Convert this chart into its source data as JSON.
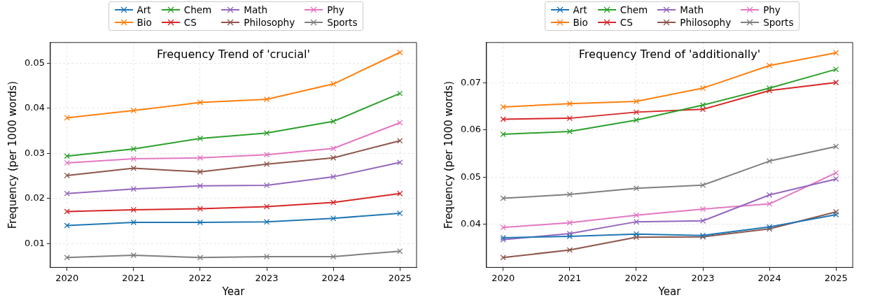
{
  "chart_data": [
    {
      "type": "line",
      "title": "Frequency Trend of 'crucial'",
      "xlabel": "Year",
      "ylabel": "Frequency (per 1000 words)",
      "x": [
        2020,
        2021,
        2022,
        2023,
        2024,
        2025
      ],
      "xlim": [
        2019.75,
        2025.25
      ],
      "xticks": [
        2020,
        2021,
        2022,
        2023,
        2024,
        2025
      ],
      "ylim": [
        0.0047,
        0.0546
      ],
      "yticks": [
        0.01,
        0.02,
        0.03,
        0.04,
        0.05
      ],
      "legend": "top",
      "grid": true,
      "marker": "cross",
      "line_style": "solid",
      "series": [
        {
          "name": "Art",
          "color": "#1f77b4",
          "values": [
            0.014,
            0.0147,
            0.0147,
            0.0148,
            0.0156,
            0.0167
          ]
        },
        {
          "name": "Bio",
          "color": "#ff7f0e",
          "values": [
            0.0379,
            0.0395,
            0.0413,
            0.042,
            0.0454,
            0.0524
          ]
        },
        {
          "name": "Chem",
          "color": "#2ca02c",
          "values": [
            0.0294,
            0.031,
            0.0333,
            0.0345,
            0.0371,
            0.0433
          ]
        },
        {
          "name": "CS",
          "color": "#d62728",
          "values": [
            0.0171,
            0.0175,
            0.0177,
            0.0182,
            0.0191,
            0.0211
          ]
        },
        {
          "name": "Math",
          "color": "#9467bd",
          "values": [
            0.0211,
            0.0221,
            0.0228,
            0.0229,
            0.0248,
            0.028
          ]
        },
        {
          "name": "Philosophy",
          "color": "#8c564b",
          "values": [
            0.0251,
            0.0267,
            0.0259,
            0.0276,
            0.029,
            0.0328
          ]
        },
        {
          "name": "Phy",
          "color": "#e377c2",
          "values": [
            0.0279,
            0.0288,
            0.029,
            0.0297,
            0.0311,
            0.0368
          ]
        },
        {
          "name": "Sports",
          "color": "#7f7f7f",
          "values": [
            0.0069,
            0.0074,
            0.0069,
            0.0071,
            0.0071,
            0.0083
          ]
        }
      ]
    },
    {
      "type": "line",
      "title": "Frequency Trend of 'additionally'",
      "xlabel": "Year",
      "ylabel": "Frequency (per 1000 words)",
      "x": [
        2020,
        2021,
        2022,
        2023,
        2024,
        2025
      ],
      "xlim": [
        2019.75,
        2025.25
      ],
      "xticks": [
        2020,
        2021,
        2022,
        2023,
        2024,
        2025
      ],
      "ylim": [
        0.0308,
        0.0786
      ],
      "yticks": [
        0.04,
        0.05,
        0.06,
        0.07
      ],
      "legend": "top",
      "grid": true,
      "marker": "cross",
      "line_style": "solid",
      "series": [
        {
          "name": "Art",
          "color": "#1f77b4",
          "values": [
            0.0371,
            0.0374,
            0.0379,
            0.0376,
            0.0394,
            0.042
          ]
        },
        {
          "name": "Bio",
          "color": "#ff7f0e",
          "values": [
            0.0649,
            0.0656,
            0.0661,
            0.0689,
            0.0737,
            0.0764
          ]
        },
        {
          "name": "Chem",
          "color": "#2ca02c",
          "values": [
            0.0591,
            0.0597,
            0.0621,
            0.0653,
            0.0689,
            0.0729
          ]
        },
        {
          "name": "CS",
          "color": "#d62728",
          "values": [
            0.0623,
            0.0625,
            0.0638,
            0.0644,
            0.0684,
            0.0701
          ]
        },
        {
          "name": "Math",
          "color": "#9467bd",
          "values": [
            0.0367,
            0.038,
            0.0405,
            0.0407,
            0.0462,
            0.0496
          ]
        },
        {
          "name": "Philosophy",
          "color": "#8c564b",
          "values": [
            0.0329,
            0.0345,
            0.0372,
            0.0373,
            0.039,
            0.0426
          ]
        },
        {
          "name": "Phy",
          "color": "#e377c2",
          "values": [
            0.0393,
            0.0403,
            0.0419,
            0.0432,
            0.0443,
            0.0509
          ]
        },
        {
          "name": "Sports",
          "color": "#7f7f7f",
          "values": [
            0.0455,
            0.0463,
            0.0476,
            0.0483,
            0.0534,
            0.0565
          ]
        }
      ]
    }
  ]
}
